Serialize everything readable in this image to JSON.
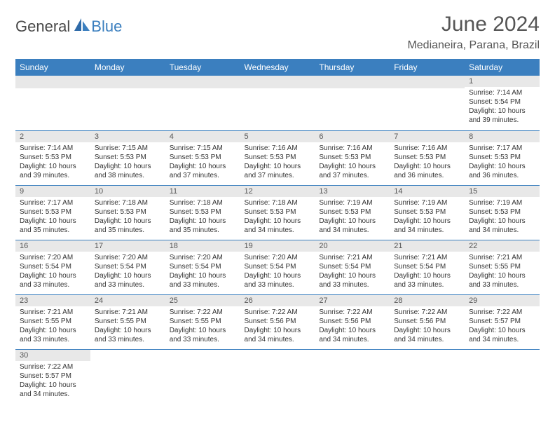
{
  "logo": {
    "part1": "General",
    "part2": "Blue"
  },
  "title": "June 2024",
  "location": "Medianeira, Parana, Brazil",
  "colors": {
    "header_bg": "#3b7fbf",
    "header_text": "#ffffff",
    "daynum_bg": "#e8e8e8",
    "border": "#3b7fbf",
    "title_color": "#555555"
  },
  "weekdays": [
    "Sunday",
    "Monday",
    "Tuesday",
    "Wednesday",
    "Thursday",
    "Friday",
    "Saturday"
  ],
  "weeks": [
    [
      null,
      null,
      null,
      null,
      null,
      null,
      {
        "n": "1",
        "sr": "Sunrise: 7:14 AM",
        "ss": "Sunset: 5:54 PM",
        "dl": "Daylight: 10 hours and 39 minutes."
      }
    ],
    [
      {
        "n": "2",
        "sr": "Sunrise: 7:14 AM",
        "ss": "Sunset: 5:53 PM",
        "dl": "Daylight: 10 hours and 39 minutes."
      },
      {
        "n": "3",
        "sr": "Sunrise: 7:15 AM",
        "ss": "Sunset: 5:53 PM",
        "dl": "Daylight: 10 hours and 38 minutes."
      },
      {
        "n": "4",
        "sr": "Sunrise: 7:15 AM",
        "ss": "Sunset: 5:53 PM",
        "dl": "Daylight: 10 hours and 37 minutes."
      },
      {
        "n": "5",
        "sr": "Sunrise: 7:16 AM",
        "ss": "Sunset: 5:53 PM",
        "dl": "Daylight: 10 hours and 37 minutes."
      },
      {
        "n": "6",
        "sr": "Sunrise: 7:16 AM",
        "ss": "Sunset: 5:53 PM",
        "dl": "Daylight: 10 hours and 37 minutes."
      },
      {
        "n": "7",
        "sr": "Sunrise: 7:16 AM",
        "ss": "Sunset: 5:53 PM",
        "dl": "Daylight: 10 hours and 36 minutes."
      },
      {
        "n": "8",
        "sr": "Sunrise: 7:17 AM",
        "ss": "Sunset: 5:53 PM",
        "dl": "Daylight: 10 hours and 36 minutes."
      }
    ],
    [
      {
        "n": "9",
        "sr": "Sunrise: 7:17 AM",
        "ss": "Sunset: 5:53 PM",
        "dl": "Daylight: 10 hours and 35 minutes."
      },
      {
        "n": "10",
        "sr": "Sunrise: 7:18 AM",
        "ss": "Sunset: 5:53 PM",
        "dl": "Daylight: 10 hours and 35 minutes."
      },
      {
        "n": "11",
        "sr": "Sunrise: 7:18 AM",
        "ss": "Sunset: 5:53 PM",
        "dl": "Daylight: 10 hours and 35 minutes."
      },
      {
        "n": "12",
        "sr": "Sunrise: 7:18 AM",
        "ss": "Sunset: 5:53 PM",
        "dl": "Daylight: 10 hours and 34 minutes."
      },
      {
        "n": "13",
        "sr": "Sunrise: 7:19 AM",
        "ss": "Sunset: 5:53 PM",
        "dl": "Daylight: 10 hours and 34 minutes."
      },
      {
        "n": "14",
        "sr": "Sunrise: 7:19 AM",
        "ss": "Sunset: 5:53 PM",
        "dl": "Daylight: 10 hours and 34 minutes."
      },
      {
        "n": "15",
        "sr": "Sunrise: 7:19 AM",
        "ss": "Sunset: 5:53 PM",
        "dl": "Daylight: 10 hours and 34 minutes."
      }
    ],
    [
      {
        "n": "16",
        "sr": "Sunrise: 7:20 AM",
        "ss": "Sunset: 5:54 PM",
        "dl": "Daylight: 10 hours and 33 minutes."
      },
      {
        "n": "17",
        "sr": "Sunrise: 7:20 AM",
        "ss": "Sunset: 5:54 PM",
        "dl": "Daylight: 10 hours and 33 minutes."
      },
      {
        "n": "18",
        "sr": "Sunrise: 7:20 AM",
        "ss": "Sunset: 5:54 PM",
        "dl": "Daylight: 10 hours and 33 minutes."
      },
      {
        "n": "19",
        "sr": "Sunrise: 7:20 AM",
        "ss": "Sunset: 5:54 PM",
        "dl": "Daylight: 10 hours and 33 minutes."
      },
      {
        "n": "20",
        "sr": "Sunrise: 7:21 AM",
        "ss": "Sunset: 5:54 PM",
        "dl": "Daylight: 10 hours and 33 minutes."
      },
      {
        "n": "21",
        "sr": "Sunrise: 7:21 AM",
        "ss": "Sunset: 5:54 PM",
        "dl": "Daylight: 10 hours and 33 minutes."
      },
      {
        "n": "22",
        "sr": "Sunrise: 7:21 AM",
        "ss": "Sunset: 5:55 PM",
        "dl": "Daylight: 10 hours and 33 minutes."
      }
    ],
    [
      {
        "n": "23",
        "sr": "Sunrise: 7:21 AM",
        "ss": "Sunset: 5:55 PM",
        "dl": "Daylight: 10 hours and 33 minutes."
      },
      {
        "n": "24",
        "sr": "Sunrise: 7:21 AM",
        "ss": "Sunset: 5:55 PM",
        "dl": "Daylight: 10 hours and 33 minutes."
      },
      {
        "n": "25",
        "sr": "Sunrise: 7:22 AM",
        "ss": "Sunset: 5:55 PM",
        "dl": "Daylight: 10 hours and 33 minutes."
      },
      {
        "n": "26",
        "sr": "Sunrise: 7:22 AM",
        "ss": "Sunset: 5:56 PM",
        "dl": "Daylight: 10 hours and 34 minutes."
      },
      {
        "n": "27",
        "sr": "Sunrise: 7:22 AM",
        "ss": "Sunset: 5:56 PM",
        "dl": "Daylight: 10 hours and 34 minutes."
      },
      {
        "n": "28",
        "sr": "Sunrise: 7:22 AM",
        "ss": "Sunset: 5:56 PM",
        "dl": "Daylight: 10 hours and 34 minutes."
      },
      {
        "n": "29",
        "sr": "Sunrise: 7:22 AM",
        "ss": "Sunset: 5:57 PM",
        "dl": "Daylight: 10 hours and 34 minutes."
      }
    ],
    [
      {
        "n": "30",
        "sr": "Sunrise: 7:22 AM",
        "ss": "Sunset: 5:57 PM",
        "dl": "Daylight: 10 hours and 34 minutes."
      },
      null,
      null,
      null,
      null,
      null,
      null
    ]
  ]
}
